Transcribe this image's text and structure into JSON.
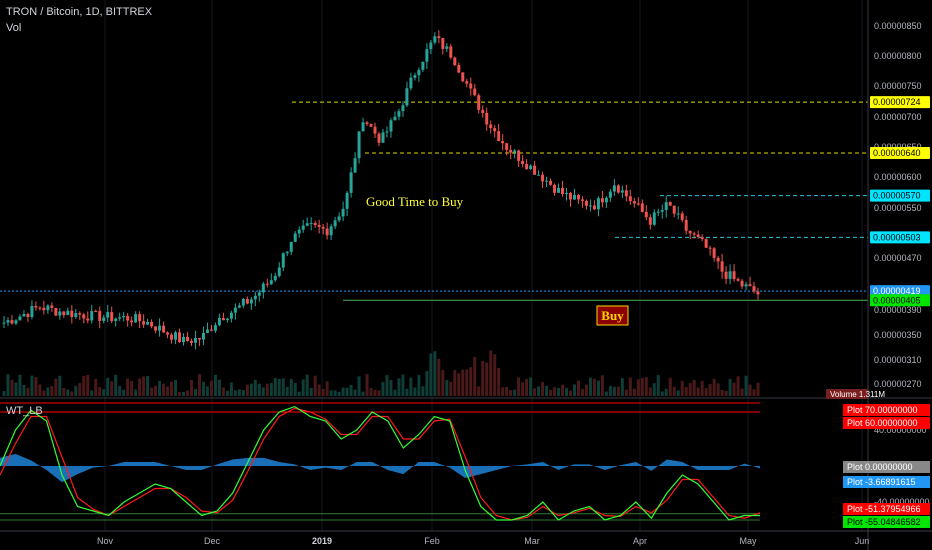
{
  "header": {
    "symbol_title": "TRON / Bitcoin, 1D, BITTREX",
    "volume_label": "Vol"
  },
  "annotations": {
    "good_time": "Good Time to Buy",
    "buy": "Buy"
  },
  "chart_data": [
    {
      "type": "candlestick",
      "title": "TRON / Bitcoin, 1D, BITTREX",
      "y_axis_ticks": [
        "0.00000850",
        "0.00000800",
        "0.00000750",
        "0.00000700",
        "0.00000650",
        "0.00000600",
        "0.00000550",
        "0.00000470",
        "0.00000390",
        "0.00000350",
        "0.00000310",
        "0.00000270"
      ],
      "x_axis_ticks": [
        "Nov",
        "Dec",
        "2019",
        "Feb",
        "Mar",
        "Apr",
        "May",
        "Jun"
      ],
      "close_path": [
        [
          "Oct",
          3.7e-06
        ],
        [
          "Oct",
          3.82e-06
        ],
        [
          "Oct",
          3.95e-06
        ],
        [
          "Oct",
          3.88e-06
        ],
        [
          "Nov",
          3.84e-06
        ],
        [
          "Nov",
          3.8e-06
        ],
        [
          "Nov",
          3.78e-06
        ],
        [
          "Nov",
          3.77e-06
        ],
        [
          "Nov",
          3.7e-06
        ],
        [
          "Nov",
          3.55e-06
        ],
        [
          "Nov",
          3.4e-06
        ],
        [
          "Dec",
          3.45e-06
        ],
        [
          "Dec",
          3.78e-06
        ],
        [
          "Dec",
          3.92e-06
        ],
        [
          "Dec",
          4.12e-06
        ],
        [
          "Dec",
          4.4e-06
        ],
        [
          "Dec",
          5e-06
        ],
        [
          "Dec",
          5.2e-06
        ],
        [
          "Dec",
          5.15e-06
        ],
        [
          "2019",
          5.55e-06
        ],
        [
          "2019",
          7e-06
        ],
        [
          "2019",
          6.6e-06
        ],
        [
          "2019",
          7.1e-06
        ],
        [
          "2019",
          7.8e-06
        ],
        [
          "2019",
          8.3e-06
        ],
        [
          "2019",
          8e-06
        ],
        [
          "Feb",
          7.4e-06
        ],
        [
          "Feb",
          6.9e-06
        ],
        [
          "Feb",
          6.5e-06
        ],
        [
          "Feb",
          6.25e-06
        ],
        [
          "Mar",
          6e-06
        ],
        [
          "Mar",
          5.75e-06
        ],
        [
          "Mar",
          5.6e-06
        ],
        [
          "Mar",
          5.55e-06
        ],
        [
          "Apr",
          5.9e-06
        ],
        [
          "Apr",
          5.6e-06
        ],
        [
          "Apr",
          5.3e-06
        ],
        [
          "Apr",
          5.55e-06
        ],
        [
          "Apr",
          5.15e-06
        ],
        [
          "Apr",
          4.9e-06
        ],
        [
          "Apr",
          4.5e-06
        ],
        [
          "May",
          4.3e-06
        ],
        [
          "May",
          4.15e-06
        ]
      ],
      "horizontal_levels": [
        {
          "value": "0.00000724",
          "bg": "#ffff00",
          "fg": "#000000",
          "line": "#d9d900",
          "style": "dashed"
        },
        {
          "value": "0.00000640",
          "bg": "#ffff00",
          "fg": "#000000",
          "line": "#d9d900",
          "style": "dashed"
        },
        {
          "value": "0.00000570",
          "bg": "#00e5ff",
          "fg": "#000000",
          "line": "#26c6da",
          "style": "dashed"
        },
        {
          "value": "0.00000503",
          "bg": "#00e5ff",
          "fg": "#000000",
          "line": "#26c6da",
          "style": "dashed"
        },
        {
          "value": "0.00000419",
          "bg": "#2196f3",
          "fg": "#ffffff",
          "line": "#2196f3",
          "style": "dotted"
        },
        {
          "value": "0.00000405",
          "bg": "#00e600",
          "fg": "#000000",
          "line": "#4caf50",
          "style": "solid"
        }
      ],
      "volume_badge": "1.311M",
      "volume_label_full": "Volume"
    },
    {
      "type": "line",
      "title": "WT_LB",
      "y_axis_ticks": [
        "40.00000000",
        "-40.00000000"
      ],
      "plot_labels": [
        {
          "label": "Plot",
          "value": "70.00000000",
          "bg": "#ff0000",
          "fg": "#ffffff"
        },
        {
          "label": "Plot",
          "value": "60.00000000",
          "bg": "#ff0000",
          "fg": "#ffffff"
        },
        {
          "label": "Plot",
          "value": "0.00000000",
          "bg": "#888888",
          "fg": "#ffffff"
        },
        {
          "label": "Plot",
          "value": "-3.66891615",
          "bg": "#2196f3",
          "fg": "#ffffff"
        },
        {
          "label": "Plot",
          "value": "-51.37954966",
          "bg": "#ff0000",
          "fg": "#ffffff"
        },
        {
          "label": "Plot",
          "value": "-55.04846582",
          "bg": "#00e600",
          "fg": "#000000"
        }
      ],
      "wt1_path": [
        0,
        40,
        62,
        50,
        -10,
        -45,
        -50,
        -55,
        -40,
        -30,
        -20,
        -25,
        -40,
        -55,
        -50,
        -30,
        5,
        40,
        60,
        66,
        55,
        50,
        30,
        40,
        60,
        50,
        20,
        35,
        55,
        50,
        -5,
        -45,
        -60,
        -60,
        -55,
        -40,
        -60,
        -50,
        -45,
        -60,
        -55,
        -40,
        -58,
        -30,
        -10,
        -20,
        -40,
        -60,
        -55,
        -55
      ],
      "wt2_path": [
        -10,
        25,
        55,
        55,
        10,
        -35,
        -48,
        -55,
        -45,
        -35,
        -25,
        -25,
        -35,
        -50,
        -52,
        -38,
        -5,
        30,
        55,
        64,
        60,
        52,
        35,
        35,
        55,
        55,
        30,
        30,
        50,
        52,
        10,
        -35,
        -55,
        -60,
        -57,
        -45,
        -55,
        -52,
        -47,
        -55,
        -56,
        -45,
        -52,
        -38,
        -15,
        -15,
        -35,
        -55,
        -58,
        -52
      ]
    }
  ]
}
